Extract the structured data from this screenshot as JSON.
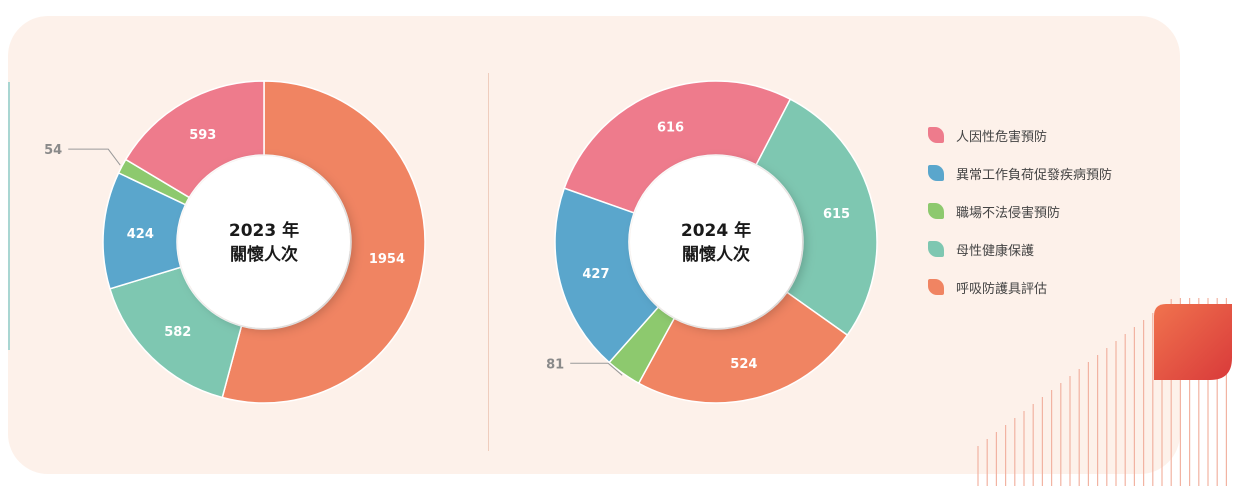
{
  "colors": {
    "pink": "#ee7b8c",
    "blue": "#5aa6cc",
    "green": "#8dc96e",
    "teal": "#7ec7b1",
    "orange": "#f08462",
    "panel": "#fdf1ea"
  },
  "legend": [
    {
      "label": "人因性危害預防",
      "color": "#ee7b8c"
    },
    {
      "label": "異常工作負荷促發疾病預防",
      "color": "#5aa6cc"
    },
    {
      "label": "職場不法侵害預防",
      "color": "#8dc96e"
    },
    {
      "label": "母性健康保護",
      "color": "#7ec7b1"
    },
    {
      "label": "呼吸防護具評估",
      "color": "#f08462"
    }
  ],
  "chart_data": [
    {
      "type": "pie",
      "donut": true,
      "center_label": [
        "2023 年",
        "關懷人次"
      ],
      "slices": [
        {
          "category": "呼吸防護具評估",
          "value": 1954,
          "label": "1954",
          "color": "#f08462"
        },
        {
          "category": "母性健康保護",
          "value": 582,
          "label": "582",
          "color": "#7ec7b1"
        },
        {
          "category": "異常工作負荷促發疾病預防",
          "value": 424,
          "label": "424",
          "color": "#5aa6cc"
        },
        {
          "category": "職場不法侵害預防",
          "value": 54,
          "label": "54",
          "color": "#8dc96e",
          "label_outside": true
        },
        {
          "category": "人因性危害預防",
          "value": 593,
          "label": "593",
          "color": "#ee7b8c"
        }
      ],
      "legend_position": "right"
    },
    {
      "type": "pie",
      "donut": true,
      "center_label": [
        "2024 年",
        "關懷人次"
      ],
      "slices": [
        {
          "category": "人因性危害預防",
          "value": 616,
          "label": "616",
          "color": "#ee7b8c"
        },
        {
          "category": "母性健康保護",
          "value": 615,
          "label": "615",
          "color": "#7ec7b1"
        },
        {
          "category": "呼吸防護具評估",
          "value": 524,
          "label": "524",
          "color": "#f08462"
        },
        {
          "category": "職場不法侵害預防",
          "value": 81,
          "label": "81",
          "color": "#8dc96e",
          "label_outside": true
        },
        {
          "category": "異常工作負荷促發疾病預防",
          "value": 427,
          "label": "427",
          "color": "#5aa6cc"
        }
      ],
      "legend_position": "right"
    }
  ]
}
